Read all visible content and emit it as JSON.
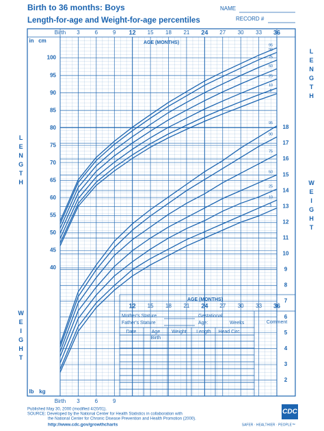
{
  "page": {
    "name_label": "NAME",
    "record_label": "RECORD #",
    "length_label": "LENGTH",
    "weight_label": "WEIGHT",
    "cm": "cm",
    "in": "in",
    "kg": "kg",
    "lb": "lb",
    "age_label": "AGE (MONTHS)",
    "form": {
      "mother": "Mother's Stature",
      "father": "Father's Stature",
      "gestational": "Gestational",
      "age": "Age:",
      "weeks": "Weeks",
      "comment": "Comment",
      "columns": [
        "Date",
        "Age",
        "Weight",
        "Length",
        "Head Circ."
      ],
      "birth": "Birth"
    },
    "footer": {
      "published": "Published May 30, 2000 (modified 4/20/01).",
      "source": "SOURCE: Developed by the National Center for Health Statistics in collaboration with",
      "source2": "the National Center for Chronic Disease Prevention and Health Promotion (2000).",
      "url": "http://www.cdc.gov/growthcharts",
      "logo": "CDC",
      "tagline": "SAFER · HEALTHIER · PEOPLE™"
    }
  },
  "chart_data": [
    {
      "type": "line",
      "title": "Birth to 36 months: Boys",
      "subtitle": "Length-for-age and Weight-for-age percentiles",
      "x": [
        0,
        3,
        6,
        9,
        12,
        15,
        18,
        21,
        24,
        27,
        30,
        33,
        36
      ],
      "xlim": [
        0,
        36
      ],
      "xticks": [
        {
          "value": 0,
          "label": "Birth"
        },
        3,
        6,
        9,
        12,
        15,
        18,
        21,
        24,
        27,
        30,
        33,
        36
      ],
      "ylim": [
        39,
        106
      ],
      "yticks": [
        40,
        45,
        50,
        55,
        60,
        65,
        70,
        75,
        80,
        85,
        90,
        95,
        100
      ],
      "grid": true,
      "series": [
        {
          "name": "5",
          "color": "#1b64b0",
          "values": [
            46.3,
            57.6,
            63.6,
            67.7,
            71.3,
            74.5,
            77.2,
            79.6,
            81.9,
            84.0,
            86.0,
            88.0,
            89.8
          ]
        },
        {
          "name": "10",
          "color": "#1b64b0",
          "values": [
            47.1,
            58.4,
            64.5,
            68.7,
            72.3,
            75.5,
            78.3,
            80.8,
            83.2,
            85.4,
            87.5,
            89.5,
            91.4
          ]
        },
        {
          "name": "25",
          "color": "#1b64b0",
          "values": [
            48.4,
            59.8,
            66.0,
            70.2,
            73.9,
            77.2,
            80.2,
            82.8,
            85.4,
            87.7,
            89.9,
            92.0,
            94.0
          ]
        },
        {
          "name": "50",
          "color": "#1b64b0",
          "values": [
            49.9,
            61.4,
            67.6,
            72.0,
            75.7,
            79.1,
            82.3,
            85.1,
            87.8,
            90.3,
            92.6,
            94.8,
            96.9
          ]
        },
        {
          "name": "75",
          "color": "#1b64b0",
          "values": [
            51.3,
            63.0,
            69.2,
            73.7,
            77.5,
            81.0,
            84.4,
            87.3,
            90.1,
            92.6,
            95.0,
            97.3,
            99.4
          ]
        },
        {
          "name": "90",
          "color": "#1b64b0",
          "values": [
            52.6,
            64.4,
            70.7,
            75.3,
            79.2,
            82.8,
            86.2,
            89.2,
            92.2,
            94.7,
            97.1,
            99.5,
            101.6
          ]
        },
        {
          "name": "95",
          "color": "#1b64b0",
          "values": [
            53.4,
            65.2,
            71.6,
            76.2,
            80.2,
            83.8,
            87.3,
            90.4,
            93.4,
            96.0,
            98.4,
            100.8,
            102.9
          ]
        }
      ]
    },
    {
      "type": "line",
      "x": [
        0,
        3,
        6,
        9,
        12,
        15,
        18,
        21,
        24,
        27,
        30,
        33,
        36
      ],
      "xlim": [
        0,
        36
      ],
      "xticks": [
        {
          "value": 0,
          "label": "Birth"
        },
        3,
        6,
        9,
        12,
        15,
        18,
        21,
        24,
        27,
        30,
        33,
        36
      ],
      "ylim": [
        1,
        19
      ],
      "yticks": [
        2,
        3,
        4,
        5,
        6,
        7,
        8,
        9,
        10,
        11,
        12,
        13,
        14,
        15,
        16,
        17,
        18
      ],
      "grid": true,
      "series": [
        {
          "name": "5",
          "color": "#1b64b0",
          "values": [
            2.5,
            5.1,
            6.6,
            7.7,
            8.6,
            9.3,
            9.9,
            10.5,
            11.0,
            11.5,
            12.0,
            12.4,
            12.9
          ]
        },
        {
          "name": "10",
          "color": "#1b64b0",
          "values": [
            2.7,
            5.4,
            6.9,
            8.0,
            9.0,
            9.7,
            10.3,
            10.9,
            11.4,
            11.9,
            12.4,
            12.9,
            13.4
          ]
        },
        {
          "name": "25",
          "color": "#1b64b0",
          "values": [
            3.1,
            5.9,
            7.4,
            8.6,
            9.5,
            10.3,
            11.0,
            11.6,
            12.1,
            12.7,
            13.2,
            13.6,
            14.1
          ]
        },
        {
          "name": "50",
          "color": "#1b64b0",
          "values": [
            3.5,
            6.4,
            7.9,
            9.2,
            10.2,
            11.0,
            11.7,
            12.3,
            12.9,
            13.5,
            14.0,
            14.5,
            15.0
          ]
        },
        {
          "name": "75",
          "color": "#1b64b0",
          "values": [
            3.8,
            6.9,
            8.5,
            9.9,
            10.9,
            11.7,
            12.5,
            13.2,
            13.8,
            14.5,
            15.1,
            15.7,
            16.3
          ]
        },
        {
          "name": "90",
          "color": "#1b64b0",
          "values": [
            4.1,
            7.3,
            9.0,
            10.4,
            11.5,
            12.4,
            13.2,
            14.0,
            14.7,
            15.4,
            16.1,
            16.8,
            17.4
          ]
        },
        {
          "name": "95",
          "color": "#1b64b0",
          "values": [
            4.3,
            7.6,
            9.3,
            10.8,
            11.9,
            12.8,
            13.6,
            14.4,
            15.2,
            15.9,
            16.7,
            17.4,
            18.1
          ]
        }
      ]
    }
  ]
}
